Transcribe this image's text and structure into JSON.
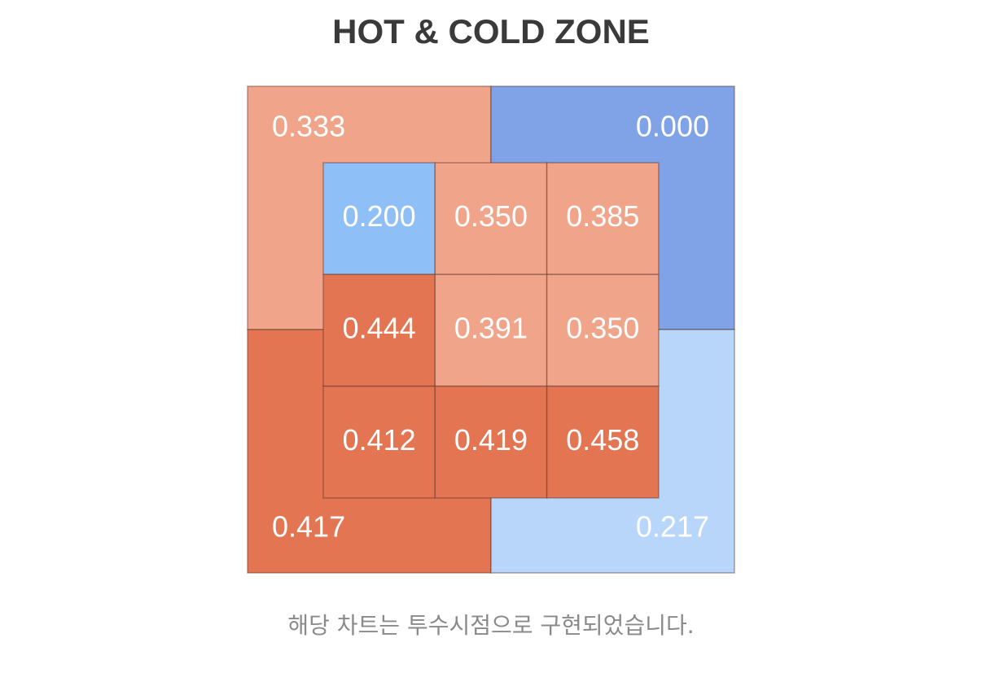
{
  "title": "HOT & COLD ZONE",
  "outer_zones": [
    {
      "label": "0.333",
      "color": "#f0a48a"
    },
    {
      "label": "0.000",
      "color": "#7fa3e6"
    },
    {
      "label": "0.417",
      "color": "#e47552"
    },
    {
      "label": "0.217",
      "color": "#b8d6fa"
    }
  ],
  "inner_grid": {
    "rows": [
      [
        {
          "label": "0.200",
          "color": "#8fbff7"
        },
        {
          "label": "0.350",
          "color": "#f0a48a"
        },
        {
          "label": "0.385",
          "color": "#f0a48a"
        }
      ],
      [
        {
          "label": "0.444",
          "color": "#e47552"
        },
        {
          "label": "0.391",
          "color": "#f0a48a"
        },
        {
          "label": "0.350",
          "color": "#f0a48a"
        }
      ],
      [
        {
          "label": "0.412",
          "color": "#e47552"
        },
        {
          "label": "0.419",
          "color": "#e47552"
        },
        {
          "label": "0.458",
          "color": "#e47552"
        }
      ]
    ]
  },
  "footnote": "해당 차트는 투수시점으로 구현되었습니다."
}
